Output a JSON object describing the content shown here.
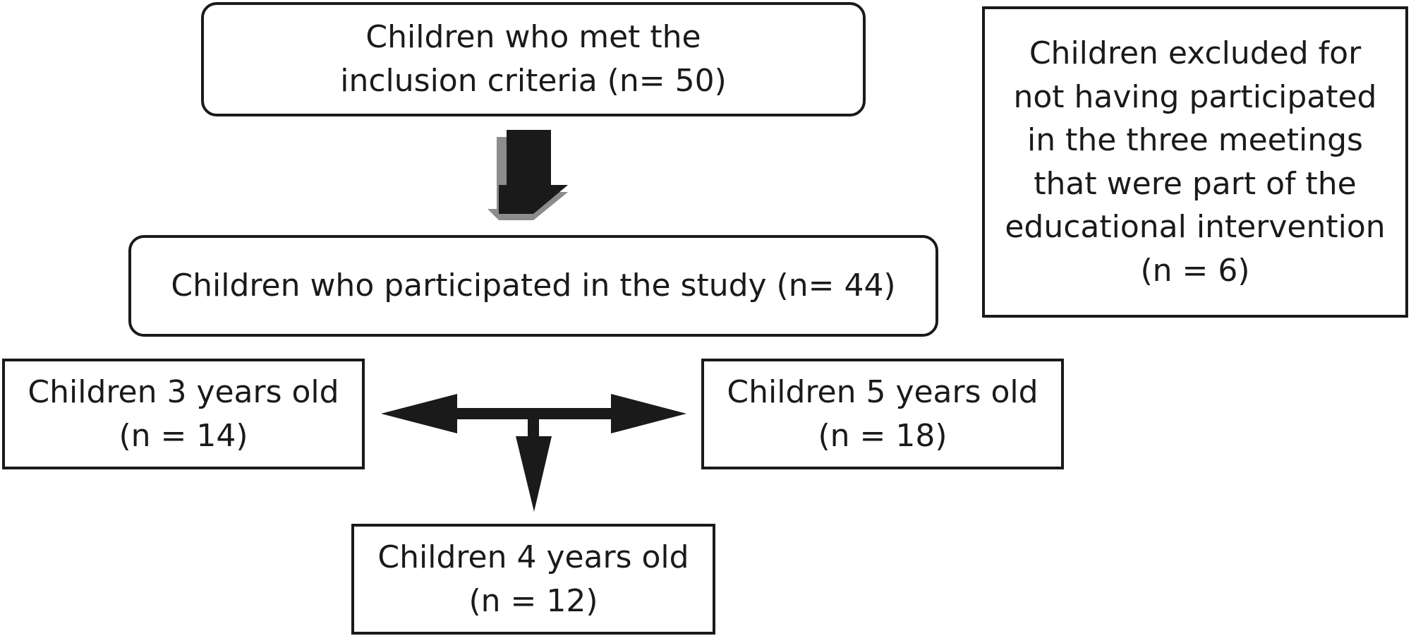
{
  "boxes": {
    "inclusion": {
      "line1": "Children who met the",
      "line2": "inclusion criteria (n= 50)"
    },
    "participated": {
      "line1": "Children who participated in the study (n= 44)"
    },
    "excluded": {
      "line1": "Children excluded for",
      "line2": "not having participated",
      "line3": "in the three meetings",
      "line4": "that were part of the",
      "line5": "educational intervention",
      "line6": "(n = 6)"
    },
    "age3": {
      "line1": "Children 3 years old",
      "line2": "(n = 14)"
    },
    "age5": {
      "line1": "Children 5 years old",
      "line2": "(n = 18)"
    },
    "age4": {
      "line1": "Children 4 years old",
      "line2": "(n = 12)"
    }
  },
  "colors": {
    "stroke": "#1a1a1a",
    "arrow_shadow": "#8c8c8c"
  }
}
